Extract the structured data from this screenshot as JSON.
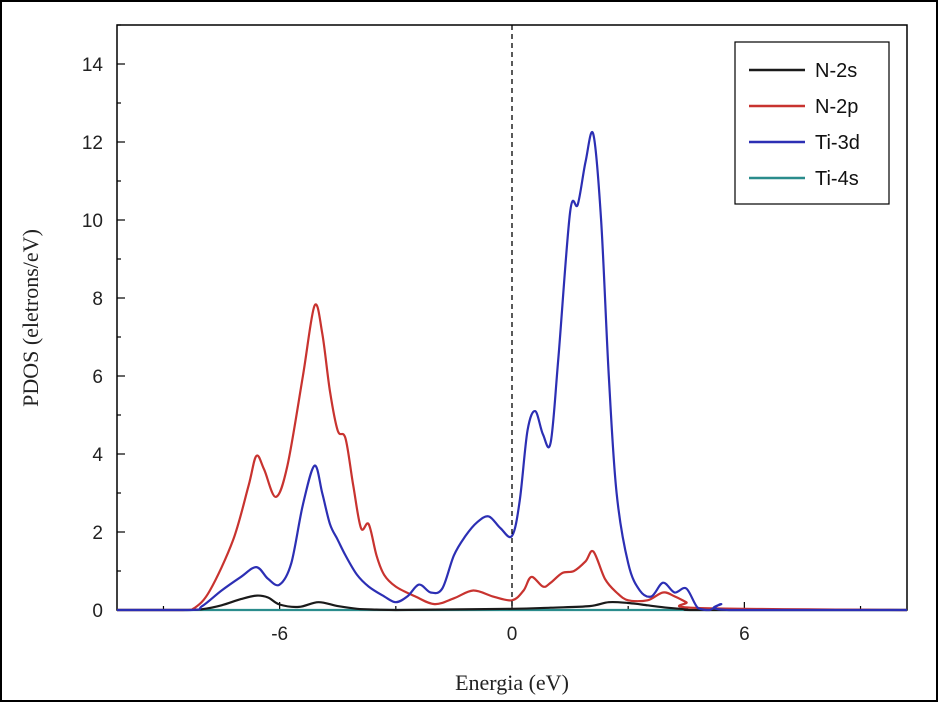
{
  "chart_data": {
    "type": "line",
    "title": "",
    "xlabel": "Energia (eV)",
    "ylabel": "PDOS (eletrons/eV)",
    "xlim": [
      -10.2,
      10.2
    ],
    "ylim": [
      0,
      15
    ],
    "xticks": [
      -6,
      0,
      6
    ],
    "xtick_labels": [
      "-6",
      "0",
      "6"
    ],
    "yticks": [
      0,
      2,
      4,
      6,
      8,
      10,
      12,
      14
    ],
    "ytick_labels": [
      "0",
      "2",
      "4",
      "6",
      "8",
      "10",
      "12",
      "14"
    ],
    "grid": false,
    "legend_position": "top-right",
    "vline_x": 0,
    "series": [
      {
        "name": "N-2s",
        "color": "#1a1a1a",
        "x": [
          -10.2,
          -8.5,
          -8.0,
          -7.5,
          -7.0,
          -6.6,
          -6.3,
          -6.0,
          -5.5,
          -5.0,
          -4.5,
          -4.0,
          -3.5,
          -3.0,
          -2.0,
          0.0,
          1.0,
          2.0,
          2.5,
          3.0,
          3.5,
          4.0,
          4.5,
          5.0,
          10.2
        ],
        "y": [
          0,
          0,
          0.02,
          0.12,
          0.28,
          0.37,
          0.32,
          0.14,
          0.08,
          0.2,
          0.1,
          0.03,
          0.01,
          0,
          0.01,
          0.03,
          0.06,
          0.1,
          0.2,
          0.18,
          0.12,
          0.06,
          0.02,
          0,
          0
        ]
      },
      {
        "name": "N-2p",
        "color": "#c8332f",
        "x": [
          -10.2,
          -8.5,
          -8.2,
          -7.8,
          -7.2,
          -6.8,
          -6.6,
          -6.4,
          -6.1,
          -5.8,
          -5.4,
          -5.1,
          -4.9,
          -4.7,
          -4.5,
          -4.3,
          -4.1,
          -3.9,
          -3.7,
          -3.5,
          -3.3,
          -3.0,
          -2.5,
          -2.0,
          -1.5,
          -1.0,
          -0.5,
          0.0,
          0.3,
          0.5,
          0.8,
          1.0,
          1.3,
          1.6,
          1.9,
          2.1,
          2.4,
          2.7,
          3.0,
          3.5,
          3.9,
          4.2,
          4.5,
          4.8,
          10.2
        ],
        "y": [
          0,
          0,
          0.05,
          0.5,
          1.8,
          3.2,
          3.95,
          3.6,
          2.9,
          3.7,
          6.0,
          7.8,
          7.1,
          5.6,
          4.6,
          4.4,
          3.2,
          2.1,
          2.2,
          1.4,
          0.9,
          0.6,
          0.35,
          0.15,
          0.3,
          0.5,
          0.35,
          0.25,
          0.5,
          0.85,
          0.6,
          0.7,
          0.95,
          1.0,
          1.25,
          1.5,
          0.8,
          0.45,
          0.25,
          0.25,
          0.45,
          0.35,
          0.2,
          0.05,
          0
        ]
      },
      {
        "name": "Ti-3d",
        "color": "#2c2fb4",
        "x": [
          -10.2,
          -8.3,
          -8.0,
          -7.5,
          -7.0,
          -6.6,
          -6.3,
          -6.0,
          -5.7,
          -5.4,
          -5.1,
          -4.9,
          -4.7,
          -4.5,
          -4.3,
          -4.0,
          -3.7,
          -3.3,
          -3.0,
          -2.7,
          -2.4,
          -2.1,
          -1.8,
          -1.5,
          -1.2,
          -0.9,
          -0.6,
          -0.3,
          0.0,
          0.2,
          0.4,
          0.6,
          0.8,
          1.0,
          1.2,
          1.5,
          1.7,
          1.9,
          2.1,
          2.3,
          2.5,
          2.7,
          3.0,
          3.3,
          3.6,
          3.9,
          4.2,
          4.5,
          4.8,
          5.1,
          5.4,
          5.6,
          10.2
        ],
        "y": [
          0,
          0,
          0.1,
          0.5,
          0.85,
          1.1,
          0.8,
          0.65,
          1.2,
          2.7,
          3.7,
          3.0,
          2.2,
          1.8,
          1.4,
          0.9,
          0.6,
          0.35,
          0.2,
          0.35,
          0.65,
          0.45,
          0.55,
          1.4,
          1.9,
          2.25,
          2.4,
          2.1,
          1.9,
          2.8,
          4.6,
          5.1,
          4.5,
          4.3,
          6.5,
          10.2,
          10.4,
          11.5,
          12.2,
          10.0,
          6.0,
          3.0,
          1.2,
          0.5,
          0.35,
          0.7,
          0.45,
          0.55,
          0.05,
          0.0,
          0.15,
          0.0,
          0
        ]
      },
      {
        "name": "Ti-4s",
        "color": "#2a8c8c",
        "x": [
          -10.2,
          10.2
        ],
        "y": [
          0,
          0
        ]
      }
    ]
  }
}
